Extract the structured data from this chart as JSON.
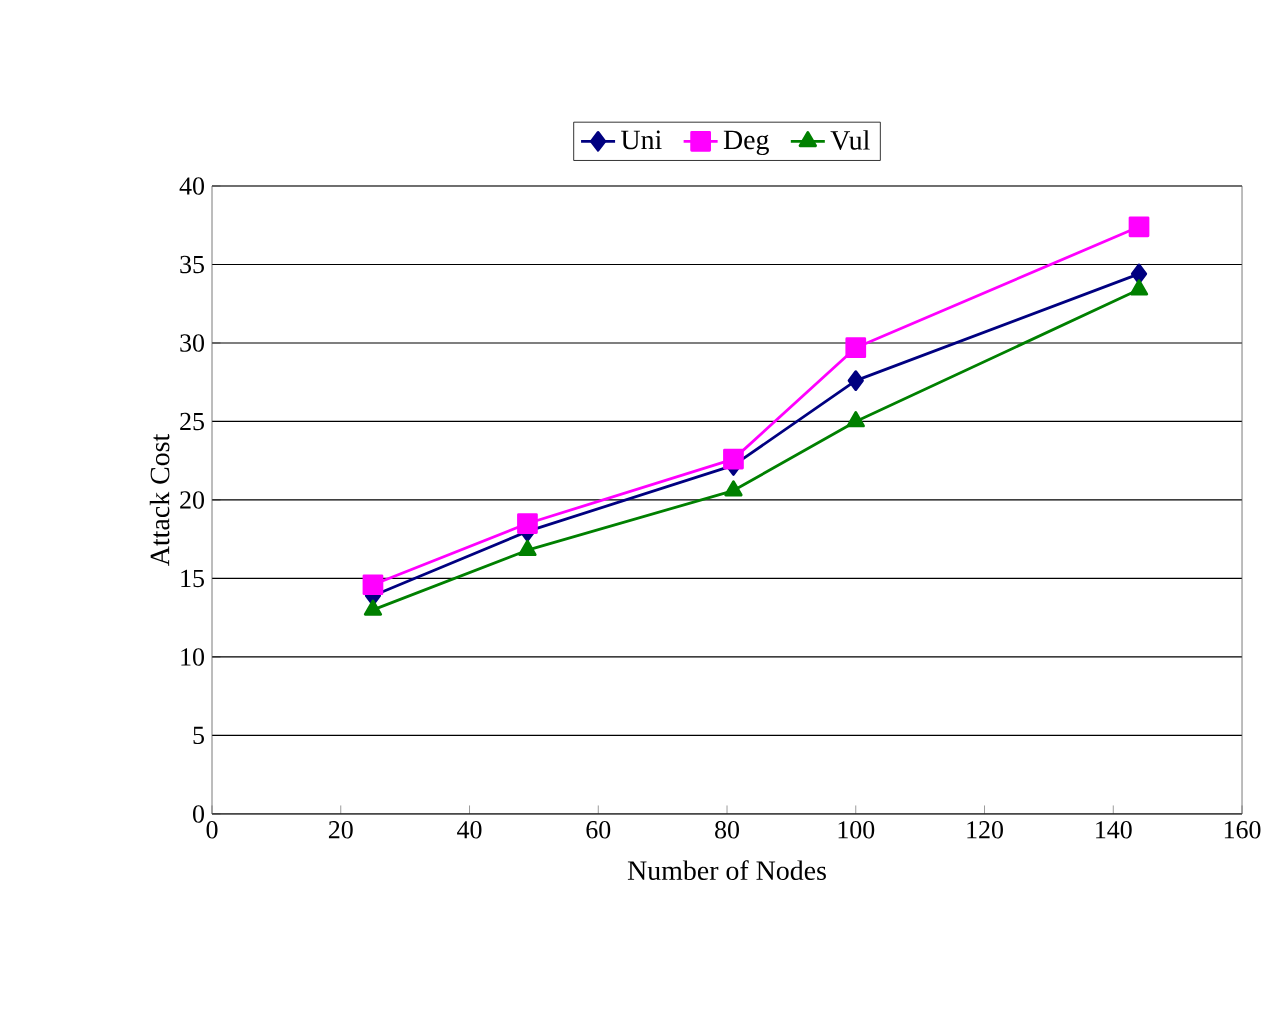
{
  "chart_data": {
    "type": "line",
    "xlabel": "Number of Nodes",
    "ylabel": "Attack Cost",
    "x": [
      25,
      49,
      81,
      100,
      144
    ],
    "series": [
      {
        "name": "Uni",
        "color": "#000080",
        "marker": "diamond",
        "values": [
          13.9,
          18.0,
          22.2,
          27.6,
          34.4
        ]
      },
      {
        "name": "Deg",
        "color": "#ff00ff",
        "marker": "square",
        "values": [
          14.6,
          18.5,
          22.6,
          29.7,
          37.4
        ]
      },
      {
        "name": "Vul",
        "color": "#008000",
        "marker": "triangle",
        "values": [
          13.0,
          16.8,
          20.6,
          25.0,
          33.4
        ]
      }
    ],
    "xlim": [
      0,
      160
    ],
    "xticks": [
      0,
      20,
      40,
      60,
      80,
      100,
      120,
      140,
      160
    ],
    "ylim": [
      0,
      40
    ],
    "yticks": [
      0,
      5,
      10,
      15,
      20,
      25,
      30,
      35,
      40
    ],
    "grid": "y",
    "legend": "top",
    "line_style": "solid"
  }
}
